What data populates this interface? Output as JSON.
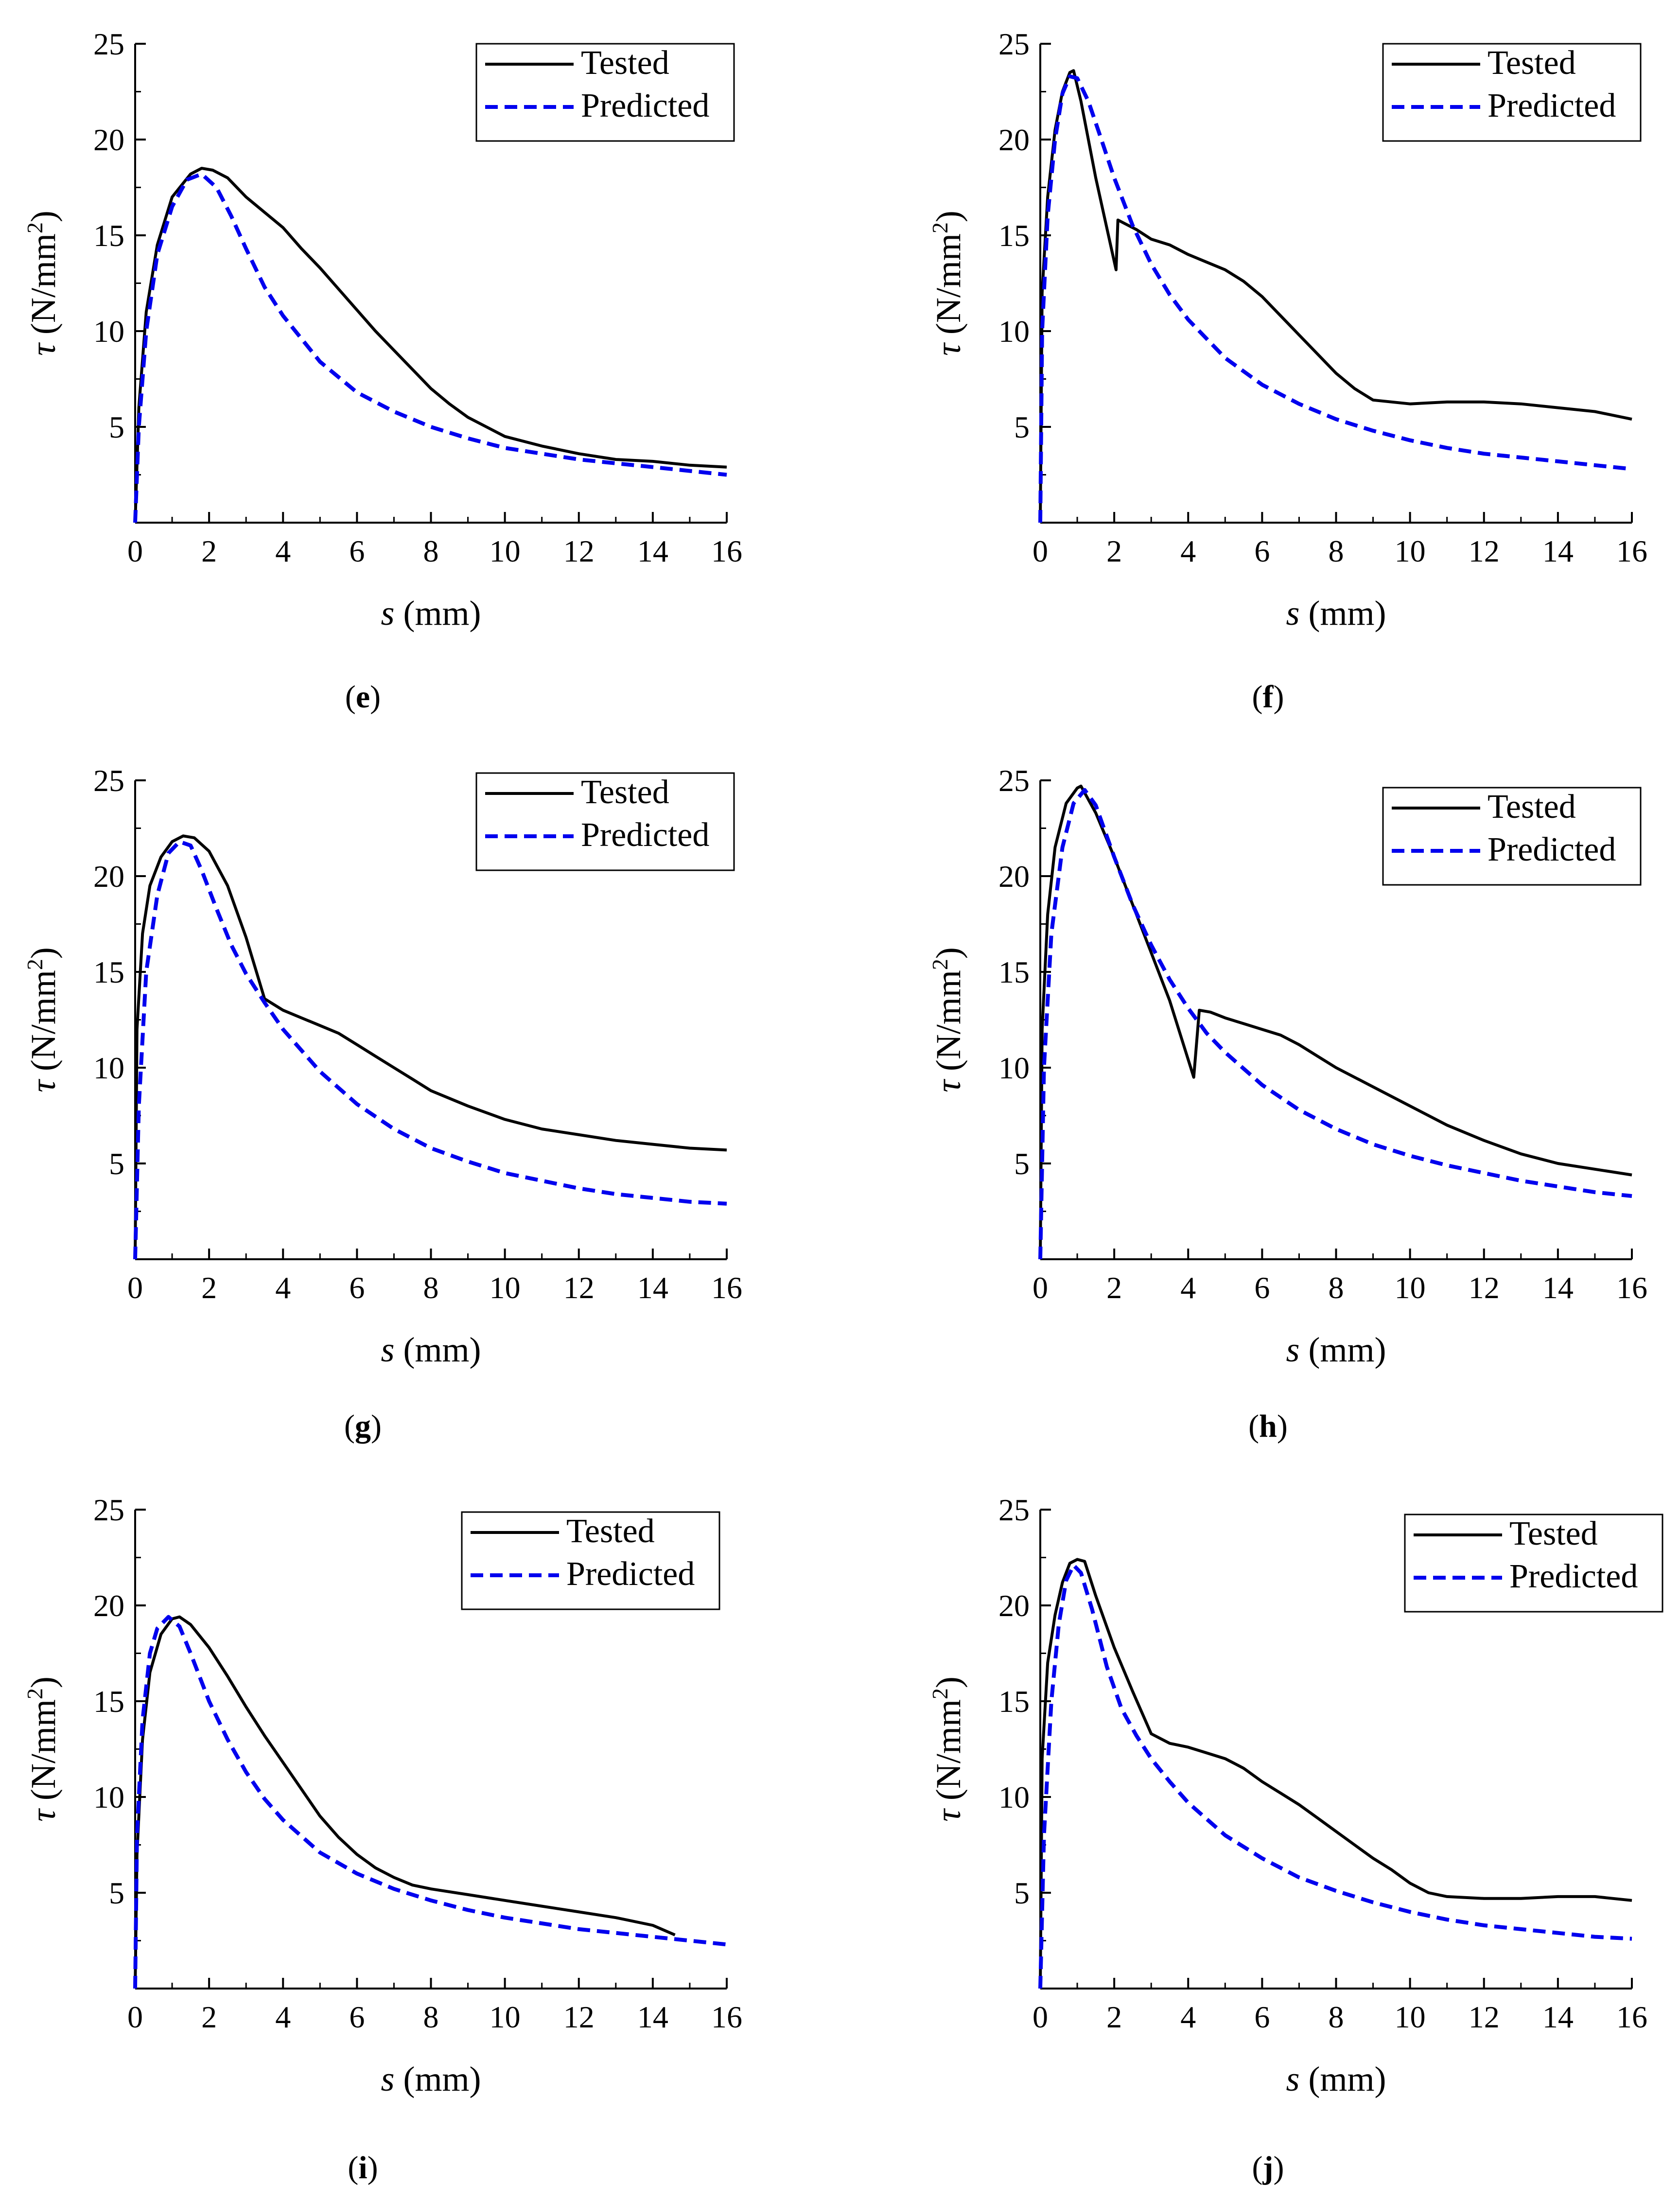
{
  "colors": {
    "tested": "#000000",
    "predicted": "#0000ee",
    "axis": "#000000"
  },
  "legend": {
    "tested": "Tested",
    "predicted": "Predicted",
    "placement": "top-right"
  },
  "common": {
    "xlabel_var": "s",
    "xlabel_unit": " (mm)",
    "ylabel_var": "τ",
    "ylabel_unit_a": " (N/mm",
    "ylabel_sup": "2",
    "ylabel_unit_b": ")",
    "xticks": [
      "0",
      "2",
      "4",
      "6",
      "8",
      "10",
      "12",
      "14",
      "16"
    ],
    "yticks": [
      "5",
      "10",
      "15",
      "20",
      "25"
    ]
  },
  "chart_data": [
    {
      "type": "line",
      "panel": "e",
      "title": "",
      "xlabel": "s (mm)",
      "ylabel": "τ (N/mm2)",
      "xlim": [
        0,
        16
      ],
      "ylim": [
        0,
        25
      ],
      "series": [
        {
          "name": "Tested",
          "style": "solid",
          "x": [
            0,
            0.1,
            0.3,
            0.6,
            1.0,
            1.5,
            1.8,
            2.1,
            2.5,
            3.0,
            3.5,
            4.0,
            4.5,
            5.0,
            5.5,
            6.0,
            6.5,
            7.0,
            7.5,
            8.0,
            8.5,
            9.0,
            9.5,
            10.0,
            11.0,
            12.0,
            13.0,
            14.0,
            15.0,
            16.0
          ],
          "y": [
            0,
            6,
            11,
            14.5,
            17,
            18.2,
            18.5,
            18.4,
            18,
            17,
            16.2,
            15.4,
            14.3,
            13.3,
            12.2,
            11.1,
            10.0,
            9.0,
            8.0,
            7.0,
            6.2,
            5.5,
            5.0,
            4.5,
            4.0,
            3.6,
            3.3,
            3.2,
            3.0,
            2.9
          ]
        },
        {
          "name": "Predicted",
          "style": "dashed",
          "x": [
            0,
            0.1,
            0.3,
            0.6,
            1.0,
            1.4,
            1.8,
            2.2,
            2.6,
            3.0,
            3.5,
            4.0,
            5.0,
            6.0,
            7.0,
            8.0,
            9.0,
            10.0,
            11.0,
            12.0,
            13.0,
            14.0,
            15.0,
            16.0
          ],
          "y": [
            0,
            5,
            10,
            14,
            16.5,
            17.9,
            18.2,
            17.5,
            16,
            14.3,
            12.3,
            10.8,
            8.4,
            6.8,
            5.8,
            5.0,
            4.4,
            3.9,
            3.6,
            3.3,
            3.1,
            2.9,
            2.7,
            2.5
          ]
        }
      ]
    },
    {
      "type": "line",
      "panel": "f",
      "title": "",
      "xlabel": "s (mm)",
      "ylabel": "τ (N/mm2)",
      "xlim": [
        0,
        16
      ],
      "ylim": [
        0,
        25
      ],
      "series": [
        {
          "name": "Tested",
          "style": "solid",
          "x": [
            0,
            0.05,
            0.2,
            0.4,
            0.6,
            0.8,
            0.9,
            1.1,
            1.5,
            2.05,
            2.1,
            2.3,
            2.6,
            3.0,
            3.5,
            4.0,
            4.5,
            5.0,
            5.5,
            6.0,
            6.5,
            7.0,
            7.5,
            8.0,
            8.5,
            9.0,
            10.0,
            11.0,
            12.0,
            13.0,
            14.0,
            15.0,
            16.0
          ],
          "y": [
            0,
            12,
            17,
            20.5,
            22.5,
            23.5,
            23.6,
            22,
            18,
            13.2,
            15.8,
            15.6,
            15.3,
            14.8,
            14.5,
            14.0,
            13.6,
            13.2,
            12.6,
            11.8,
            10.8,
            9.8,
            8.8,
            7.8,
            7.0,
            6.4,
            6.2,
            6.3,
            6.3,
            6.2,
            6.0,
            5.8,
            5.4
          ]
        },
        {
          "name": "Predicted",
          "style": "dashed",
          "x": [
            0,
            0.05,
            0.2,
            0.4,
            0.6,
            0.8,
            1.0,
            1.3,
            1.6,
            2.0,
            2.5,
            3.0,
            3.5,
            4.0,
            5.0,
            6.0,
            7.0,
            8.0,
            9.0,
            10.0,
            11.0,
            12.0,
            13.0,
            14.0,
            15.0,
            16.0
          ],
          "y": [
            0,
            10,
            16,
            20,
            22.4,
            23.3,
            23.2,
            22.0,
            20.3,
            18.0,
            15.5,
            13.5,
            11.9,
            10.6,
            8.6,
            7.2,
            6.2,
            5.4,
            4.8,
            4.3,
            3.9,
            3.6,
            3.4,
            3.2,
            3.0,
            2.8
          ]
        }
      ]
    },
    {
      "type": "line",
      "panel": "g",
      "title": "",
      "xlabel": "s (mm)",
      "ylabel": "τ (N/mm2)",
      "xlim": [
        0,
        16
      ],
      "ylim": [
        0,
        25
      ],
      "series": [
        {
          "name": "Tested",
          "style": "solid",
          "x": [
            0,
            0.05,
            0.2,
            0.4,
            0.7,
            1.0,
            1.3,
            1.6,
            2.0,
            2.5,
            3.0,
            3.5,
            4.0,
            4.5,
            5.0,
            5.5,
            6.0,
            6.5,
            7.0,
            7.5,
            8.0,
            9.0,
            10.0,
            11.0,
            12.0,
            13.0,
            14.0,
            15.0,
            16.0
          ],
          "y": [
            0,
            12,
            17,
            19.5,
            21,
            21.8,
            22.1,
            22,
            21.3,
            19.5,
            16.8,
            13.6,
            13.0,
            12.6,
            12.2,
            11.8,
            11.2,
            10.6,
            10.0,
            9.4,
            8.8,
            8.0,
            7.3,
            6.8,
            6.5,
            6.2,
            6.0,
            5.8,
            5.7
          ]
        },
        {
          "name": "Predicted",
          "style": "dashed",
          "x": [
            0,
            0.1,
            0.3,
            0.6,
            0.9,
            1.2,
            1.5,
            1.8,
            2.2,
            2.6,
            3.0,
            3.5,
            4.0,
            5.0,
            6.0,
            7.0,
            8.0,
            9.0,
            10.0,
            11.0,
            12.0,
            13.0,
            14.0,
            15.0,
            16.0
          ],
          "y": [
            0,
            8,
            15,
            19,
            21.2,
            21.8,
            21.6,
            20.3,
            18.3,
            16.4,
            14.9,
            13.4,
            12.0,
            9.8,
            8.1,
            6.8,
            5.8,
            5.1,
            4.5,
            4.1,
            3.7,
            3.4,
            3.2,
            3.0,
            2.9
          ]
        }
      ]
    },
    {
      "type": "line",
      "panel": "h",
      "title": "",
      "xlabel": "s (mm)",
      "ylabel": "τ (N/mm2)",
      "xlim": [
        0,
        16
      ],
      "ylim": [
        0,
        25
      ],
      "series": [
        {
          "name": "Tested",
          "style": "solid",
          "x": [
            0,
            0.05,
            0.2,
            0.4,
            0.7,
            1.0,
            1.1,
            1.5,
            2.0,
            2.5,
            3.0,
            3.5,
            4.15,
            4.3,
            4.6,
            5.0,
            5.5,
            6.0,
            6.5,
            7.0,
            7.5,
            8.0,
            9.0,
            10.0,
            11.0,
            12.0,
            13.0,
            14.0,
            15.0,
            16.0
          ],
          "y": [
            0,
            12,
            18,
            21.5,
            23.8,
            24.6,
            24.7,
            23.3,
            21.0,
            18.5,
            16.0,
            13.5,
            9.5,
            13.0,
            12.9,
            12.6,
            12.3,
            12.0,
            11.7,
            11.2,
            10.6,
            10.0,
            9.0,
            8.0,
            7.0,
            6.2,
            5.5,
            5.0,
            4.7,
            4.4
          ]
        },
        {
          "name": "Predicted",
          "style": "dashed",
          "x": [
            0,
            0.1,
            0.3,
            0.6,
            0.9,
            1.2,
            1.5,
            2.0,
            2.5,
            3.0,
            3.5,
            4.0,
            4.5,
            5.0,
            6.0,
            7.0,
            8.0,
            9.0,
            10.0,
            11.0,
            12.0,
            13.0,
            14.0,
            15.0,
            16.0
          ],
          "y": [
            0,
            10,
            17,
            21.5,
            23.8,
            24.5,
            23.7,
            21.0,
            18.5,
            16.4,
            14.6,
            13.1,
            11.8,
            10.8,
            9.1,
            7.8,
            6.8,
            6.0,
            5.4,
            4.9,
            4.5,
            4.1,
            3.8,
            3.5,
            3.3
          ]
        }
      ]
    },
    {
      "type": "line",
      "panel": "i",
      "title": "",
      "xlabel": "s (mm)",
      "ylabel": "τ (N/mm2)",
      "xlim": [
        0,
        16
      ],
      "ylim": [
        0,
        25
      ],
      "series": [
        {
          "name": "Tested",
          "style": "solid",
          "x": [
            0,
            0.05,
            0.2,
            0.4,
            0.7,
            1.0,
            1.2,
            1.5,
            2.0,
            2.5,
            3.0,
            3.5,
            4.0,
            4.5,
            5.0,
            5.5,
            6.0,
            6.5,
            7.0,
            7.5,
            8.0,
            9.0,
            10.0,
            11.0,
            12.0,
            13.0,
            14.0,
            14.6
          ],
          "y": [
            0,
            7,
            13,
            16.5,
            18.5,
            19.3,
            19.4,
            19.0,
            17.8,
            16.3,
            14.7,
            13.2,
            11.8,
            10.4,
            9.0,
            7.9,
            7.0,
            6.3,
            5.8,
            5.4,
            5.2,
            4.9,
            4.6,
            4.3,
            4.0,
            3.7,
            3.3,
            2.8
          ]
        },
        {
          "name": "Predicted",
          "style": "dashed",
          "x": [
            0,
            0.05,
            0.2,
            0.4,
            0.6,
            0.9,
            1.2,
            1.5,
            2.0,
            2.5,
            3.0,
            3.5,
            4.0,
            5.0,
            6.0,
            7.0,
            8.0,
            9.0,
            10.0,
            11.0,
            12.0,
            13.0,
            14.0,
            15.0,
            16.0
          ],
          "y": [
            0,
            8,
            14,
            17.5,
            18.8,
            19.4,
            18.9,
            17.5,
            15.0,
            13.0,
            11.3,
            9.9,
            8.8,
            7.1,
            6.0,
            5.2,
            4.6,
            4.1,
            3.7,
            3.4,
            3.1,
            2.9,
            2.7,
            2.5,
            2.3
          ]
        }
      ]
    },
    {
      "type": "line",
      "panel": "j",
      "title": "",
      "xlabel": "s (mm)",
      "ylabel": "τ (N/mm2)",
      "xlim": [
        0,
        16
      ],
      "ylim": [
        0,
        25
      ],
      "series": [
        {
          "name": "Tested",
          "style": "solid",
          "x": [
            0,
            0.05,
            0.2,
            0.4,
            0.6,
            0.8,
            1.0,
            1.2,
            1.5,
            2.0,
            2.5,
            3.0,
            3.5,
            4.0,
            4.5,
            5.0,
            5.5,
            6.0,
            6.5,
            7.0,
            7.5,
            8.0,
            8.5,
            9.0,
            9.5,
            10.0,
            10.5,
            11.0,
            12.0,
            13.0,
            14.0,
            15.0,
            16.0
          ],
          "y": [
            0,
            12,
            17,
            19.5,
            21.2,
            22.2,
            22.4,
            22.3,
            20.5,
            17.8,
            15.5,
            13.3,
            12.8,
            12.6,
            12.3,
            12.0,
            11.5,
            10.8,
            10.2,
            9.6,
            8.9,
            8.2,
            7.5,
            6.8,
            6.2,
            5.5,
            5.0,
            4.8,
            4.7,
            4.7,
            4.8,
            4.8,
            4.6
          ]
        },
        {
          "name": "Predicted",
          "style": "dashed",
          "x": [
            0,
            0.1,
            0.3,
            0.5,
            0.7,
            0.9,
            1.1,
            1.4,
            1.8,
            2.2,
            2.6,
            3.0,
            3.5,
            4.0,
            5.0,
            6.0,
            7.0,
            8.0,
            9.0,
            10.0,
            11.0,
            12.0,
            13.0,
            14.0,
            15.0,
            16.0
          ],
          "y": [
            0,
            8,
            15,
            19,
            21.3,
            22.1,
            21.7,
            19.8,
            16.8,
            14.6,
            13.2,
            12.0,
            10.8,
            9.7,
            8.0,
            6.8,
            5.8,
            5.1,
            4.5,
            4.0,
            3.6,
            3.3,
            3.1,
            2.9,
            2.7,
            2.6
          ]
        }
      ]
    }
  ]
}
